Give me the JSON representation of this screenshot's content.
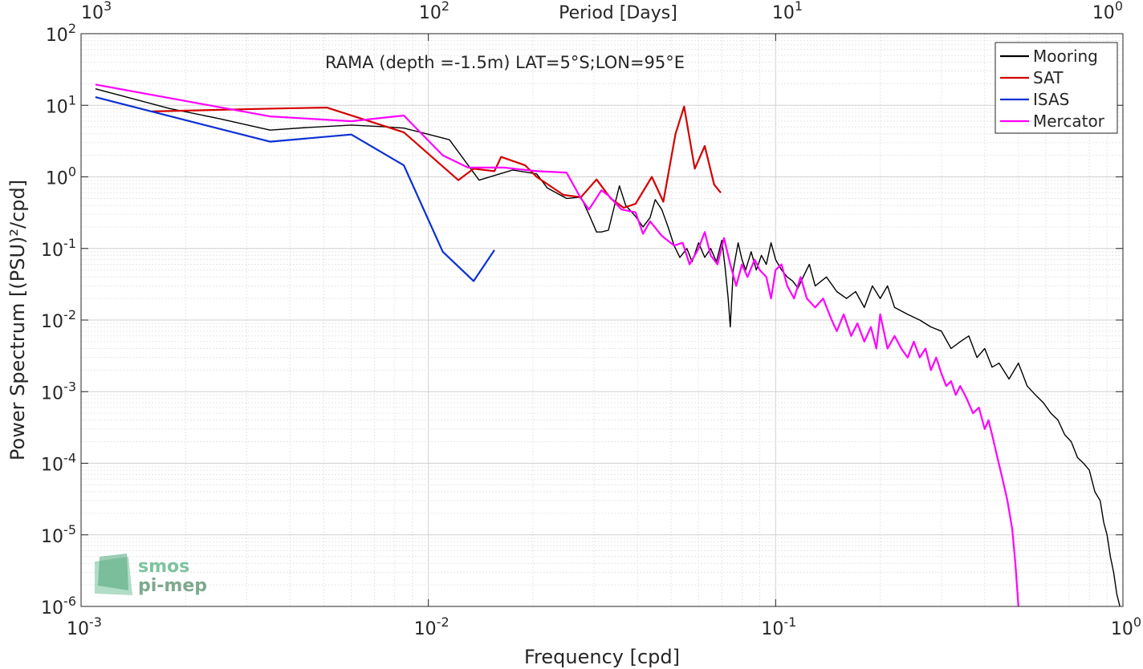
{
  "chart_data": {
    "type": "line",
    "title": "",
    "annotation": "RAMA (depth =-1.5m) LAT=5°S;LON=95°E",
    "xlabel": "Frequency [cpd]",
    "ylabel": "Power Spectrum [(PSU)²/cpd]",
    "top_xlabel": "Period [Days]",
    "x_scale": "log",
    "y_scale": "log",
    "xlim": [
      0.001,
      1
    ],
    "ylim": [
      1e-06,
      100
    ],
    "grid": true,
    "legend_position": "top-right",
    "x_ticks": [
      {
        "value": 0.001,
        "base": "10",
        "exp": "-3"
      },
      {
        "value": 0.01,
        "base": "10",
        "exp": "-2"
      },
      {
        "value": 0.1,
        "base": "10",
        "exp": "-1"
      },
      {
        "value": 1,
        "base": "10",
        "exp": "0"
      }
    ],
    "y_ticks": [
      {
        "value": 1e-06,
        "base": "10",
        "exp": "-6"
      },
      {
        "value": 1e-05,
        "base": "10",
        "exp": "-5"
      },
      {
        "value": 0.0001,
        "base": "10",
        "exp": "-4"
      },
      {
        "value": 0.001,
        "base": "10",
        "exp": "-3"
      },
      {
        "value": 0.01,
        "base": "10",
        "exp": "-2"
      },
      {
        "value": 0.1,
        "base": "10",
        "exp": "-1"
      },
      {
        "value": 1,
        "base": "10",
        "exp": "0"
      },
      {
        "value": 10,
        "base": "10",
        "exp": "1"
      },
      {
        "value": 100,
        "base": "10",
        "exp": "2"
      }
    ],
    "top_ticks": [
      {
        "value": 1000,
        "base": "10",
        "exp": "3"
      },
      {
        "value": 100,
        "base": "10",
        "exp": "2"
      },
      {
        "value": 10,
        "base": "10",
        "exp": "1"
      },
      {
        "value": 1,
        "base": "10",
        "exp": "0"
      }
    ],
    "series": [
      {
        "name": "Mooring",
        "color": "#000000",
        "points": [
          [
            0.0011,
            17
          ],
          [
            0.0018,
            9
          ],
          [
            0.0025,
            6.5
          ],
          [
            0.0035,
            4.5
          ],
          [
            0.0045,
            4.9
          ],
          [
            0.006,
            5.3
          ],
          [
            0.0075,
            5
          ],
          [
            0.0085,
            4.8
          ],
          [
            0.0095,
            4.2
          ],
          [
            0.0115,
            3.3
          ],
          [
            0.014,
            0.9
          ],
          [
            0.0175,
            1.25
          ],
          [
            0.0205,
            1.1
          ],
          [
            0.022,
            0.7
          ],
          [
            0.025,
            0.5
          ],
          [
            0.0275,
            0.52
          ],
          [
            0.029,
            0.3
          ],
          [
            0.0305,
            0.17
          ],
          [
            0.0315,
            0.17
          ],
          [
            0.033,
            0.18
          ],
          [
            0.0355,
            0.75
          ],
          [
            0.037,
            0.4
          ],
          [
            0.0395,
            0.28
          ],
          [
            0.0415,
            0.2
          ],
          [
            0.0435,
            0.27
          ],
          [
            0.045,
            0.48
          ],
          [
            0.047,
            0.35
          ],
          [
            0.049,
            0.2
          ],
          [
            0.051,
            0.11
          ],
          [
            0.053,
            0.075
          ],
          [
            0.0555,
            0.1
          ],
          [
            0.0575,
            0.065
          ],
          [
            0.06,
            0.12
          ],
          [
            0.0625,
            0.075
          ],
          [
            0.065,
            0.1
          ],
          [
            0.0675,
            0.065
          ],
          [
            0.07,
            0.13
          ],
          [
            0.0715,
            0.055
          ],
          [
            0.073,
            0.02
          ],
          [
            0.074,
            0.008
          ],
          [
            0.0755,
            0.05
          ],
          [
            0.078,
            0.12
          ],
          [
            0.08,
            0.07
          ],
          [
            0.082,
            0.05
          ],
          [
            0.085,
            0.09
          ],
          [
            0.088,
            0.05
          ],
          [
            0.091,
            0.08
          ],
          [
            0.094,
            0.06
          ],
          [
            0.097,
            0.12
          ],
          [
            0.1,
            0.07
          ],
          [
            0.104,
            0.05
          ],
          [
            0.108,
            0.04
          ],
          [
            0.112,
            0.035
          ],
          [
            0.116,
            0.028
          ],
          [
            0.12,
            0.04
          ],
          [
            0.125,
            0.06
          ],
          [
            0.13,
            0.03
          ],
          [
            0.14,
            0.04
          ],
          [
            0.15,
            0.025
          ],
          [
            0.16,
            0.02
          ],
          [
            0.17,
            0.025
          ],
          [
            0.18,
            0.015
          ],
          [
            0.19,
            0.03
          ],
          [
            0.2,
            0.02
          ],
          [
            0.21,
            0.03
          ],
          [
            0.22,
            0.015
          ],
          [
            0.24,
            0.012
          ],
          [
            0.26,
            0.01
          ],
          [
            0.28,
            0.008
          ],
          [
            0.3,
            0.007
          ],
          [
            0.32,
            0.004
          ],
          [
            0.34,
            0.005
          ],
          [
            0.36,
            0.006
          ],
          [
            0.38,
            0.003
          ],
          [
            0.4,
            0.004
          ],
          [
            0.42,
            0.0022
          ],
          [
            0.44,
            0.0025
          ],
          [
            0.47,
            0.0015
          ],
          [
            0.5,
            0.0025
          ],
          [
            0.53,
            0.0012
          ],
          [
            0.56,
            0.0009
          ],
          [
            0.59,
            0.0007
          ],
          [
            0.62,
            0.0005
          ],
          [
            0.65,
            0.0004
          ],
          [
            0.68,
            0.00025
          ],
          [
            0.71,
            0.0002
          ],
          [
            0.74,
            0.00012
          ],
          [
            0.77,
            0.0001
          ],
          [
            0.8,
            8e-05
          ],
          [
            0.83,
            4e-05
          ],
          [
            0.86,
            3e-05
          ],
          [
            0.88,
            1.5e-05
          ],
          [
            0.9,
            1e-05
          ],
          [
            0.92,
            5e-06
          ],
          [
            0.94,
            3e-06
          ],
          [
            0.96,
            1.5e-06
          ],
          [
            0.98,
            1e-06
          ]
        ]
      },
      {
        "name": "SAT",
        "color": "#d40000",
        "points": [
          [
            0.0016,
            8.2
          ],
          [
            0.0036,
            9
          ],
          [
            0.0051,
            9.3
          ],
          [
            0.0085,
            4.2
          ],
          [
            0.0122,
            0.9
          ],
          [
            0.0135,
            1.3
          ],
          [
            0.0155,
            1.2
          ],
          [
            0.0162,
            1.9
          ],
          [
            0.019,
            1.45
          ],
          [
            0.0205,
            1.0
          ],
          [
            0.0245,
            0.56
          ],
          [
            0.0275,
            0.52
          ],
          [
            0.0305,
            0.92
          ],
          [
            0.0335,
            0.5
          ],
          [
            0.0365,
            0.37
          ],
          [
            0.0395,
            0.42
          ],
          [
            0.044,
            1.0
          ],
          [
            0.0475,
            0.45
          ],
          [
            0.0515,
            4
          ],
          [
            0.0545,
            9.6
          ],
          [
            0.0585,
            1.3
          ],
          [
            0.0625,
            2.7
          ],
          [
            0.0665,
            0.78
          ],
          [
            0.0695,
            0.6
          ]
        ]
      },
      {
        "name": "ISAS",
        "color": "#0a2fd4",
        "points": [
          [
            0.0011,
            13
          ],
          [
            0.0035,
            3.1
          ],
          [
            0.006,
            3.9
          ],
          [
            0.0085,
            1.45
          ],
          [
            0.011,
            0.09
          ],
          [
            0.0135,
            0.035
          ],
          [
            0.0155,
            0.095
          ]
        ]
      },
      {
        "name": "Mercator",
        "color": "#ff00ff",
        "points": [
          [
            0.0011,
            19.5
          ],
          [
            0.0035,
            7
          ],
          [
            0.006,
            6
          ],
          [
            0.0085,
            7.2
          ],
          [
            0.011,
            2
          ],
          [
            0.013,
            1.35
          ],
          [
            0.0165,
            1.35
          ],
          [
            0.0205,
            1.2
          ],
          [
            0.025,
            1.15
          ],
          [
            0.0275,
            0.5
          ],
          [
            0.029,
            0.35
          ],
          [
            0.0315,
            0.65
          ],
          [
            0.033,
            0.55
          ],
          [
            0.036,
            0.35
          ],
          [
            0.0395,
            0.32
          ],
          [
            0.0415,
            0.16
          ],
          [
            0.0435,
            0.24
          ],
          [
            0.047,
            0.15
          ],
          [
            0.051,
            0.11
          ],
          [
            0.054,
            0.12
          ],
          [
            0.0565,
            0.06
          ],
          [
            0.06,
            0.1
          ],
          [
            0.0625,
            0.17
          ],
          [
            0.065,
            0.08
          ],
          [
            0.068,
            0.06
          ],
          [
            0.071,
            0.14
          ],
          [
            0.074,
            0.06
          ],
          [
            0.077,
            0.03
          ],
          [
            0.08,
            0.06
          ],
          [
            0.083,
            0.04
          ],
          [
            0.087,
            0.07
          ],
          [
            0.09,
            0.05
          ],
          [
            0.094,
            0.04
          ],
          [
            0.097,
            0.02
          ],
          [
            0.1,
            0.05
          ],
          [
            0.104,
            0.06
          ],
          [
            0.108,
            0.03
          ],
          [
            0.113,
            0.02
          ],
          [
            0.118,
            0.04
          ],
          [
            0.123,
            0.02
          ],
          [
            0.13,
            0.015
          ],
          [
            0.137,
            0.02
          ],
          [
            0.145,
            0.01
          ],
          [
            0.15,
            0.007
          ],
          [
            0.157,
            0.012
          ],
          [
            0.165,
            0.006
          ],
          [
            0.172,
            0.009
          ],
          [
            0.18,
            0.005
          ],
          [
            0.188,
            0.008
          ],
          [
            0.195,
            0.004
          ],
          [
            0.2,
            0.012
          ],
          [
            0.21,
            0.004
          ],
          [
            0.22,
            0.006
          ],
          [
            0.23,
            0.004
          ],
          [
            0.24,
            0.003
          ],
          [
            0.25,
            0.005
          ],
          [
            0.26,
            0.003
          ],
          [
            0.27,
            0.004
          ],
          [
            0.28,
            0.002
          ],
          [
            0.29,
            0.003
          ],
          [
            0.3,
            0.0018
          ],
          [
            0.31,
            0.0012
          ],
          [
            0.32,
            0.0014
          ],
          [
            0.33,
            0.0009
          ],
          [
            0.34,
            0.0012
          ],
          [
            0.355,
            0.0008
          ],
          [
            0.37,
            0.0005
          ],
          [
            0.385,
            0.0006
          ],
          [
            0.4,
            0.0003
          ],
          [
            0.41,
            0.0004
          ],
          [
            0.42,
            0.00025
          ],
          [
            0.435,
            0.00012
          ],
          [
            0.45,
            6e-05
          ],
          [
            0.465,
            3e-05
          ],
          [
            0.48,
            1.2e-05
          ],
          [
            0.49,
            4e-06
          ],
          [
            0.495,
            2e-06
          ],
          [
            0.5,
            1e-06
          ]
        ]
      }
    ]
  },
  "logo": {
    "line1": "smos",
    "line2": "pi-mep"
  }
}
